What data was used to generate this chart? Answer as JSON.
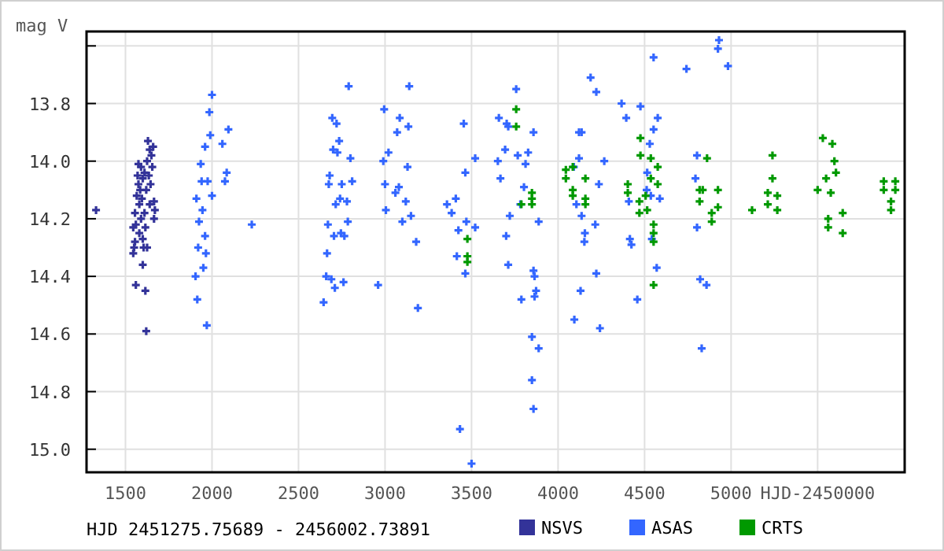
{
  "chart_data": {
    "type": "scatter",
    "ylabel": "mag V",
    "xlabel": "HJD-2450000",
    "annotations": [
      "HJD 2451275.75689 - 2456002.73891"
    ],
    "xlim": [
      1275,
      6003
    ],
    "xticks": [
      1500,
      2000,
      2500,
      3000,
      3500,
      4000,
      4500,
      5000,
      {
        "value": 5500,
        "label": null
      }
    ],
    "ylim": [
      15.08,
      13.55
    ],
    "yticks": [
      {
        "value": 13.6,
        "label": null
      },
      13.8,
      {
        "value": 14,
        "label": "14.0"
      },
      14.2,
      14.4,
      14.6,
      14.8,
      {
        "value": 15,
        "label": "15.0"
      }
    ],
    "grid": true,
    "legend": "bottom",
    "marker": "cross",
    "series": [
      {
        "name": "NSVS",
        "color": "#333399",
        "x": [
          1330,
          1545,
          1545,
          1550,
          1555,
          1555,
          1560,
          1560,
          1565,
          1570,
          1575,
          1575,
          1580,
          1580,
          1585,
          1590,
          1590,
          1595,
          1600,
          1600,
          1605,
          1610,
          1610,
          1615,
          1615,
          1620,
          1625,
          1625,
          1630,
          1635,
          1640,
          1640,
          1645,
          1650,
          1655,
          1660,
          1665,
          1665,
          1670,
          1620,
          1600
        ],
        "values": [
          14.17,
          14.23,
          14.32,
          14.3,
          14.28,
          14.18,
          14.43,
          14.22,
          14.12,
          14.05,
          14.01,
          14.08,
          14.15,
          14.25,
          14.1,
          14.02,
          14.2,
          14.13,
          14.06,
          14.27,
          14.3,
          14.18,
          14.04,
          14.45,
          14.23,
          14.1,
          14.0,
          14.3,
          13.93,
          14.05,
          13.96,
          14.15,
          14.08,
          13.98,
          14.02,
          13.95,
          14.14,
          14.2,
          14.17,
          14.59,
          14.36
        ]
      },
      {
        "name": "ASAS",
        "color": "#3366ff",
        "x": [
          1905,
          1910,
          1915,
          1920,
          1925,
          1935,
          1940,
          1945,
          1950,
          1960,
          1960,
          1965,
          1970,
          1975,
          1985,
          1990,
          2000,
          2000,
          2060,
          2075,
          2085,
          2095,
          2230,
          2645,
          2660,
          2665,
          2670,
          2675,
          2680,
          2690,
          2695,
          2700,
          2705,
          2710,
          2715,
          2720,
          2725,
          2735,
          2740,
          2745,
          2750,
          2760,
          2765,
          2780,
          2785,
          2790,
          2800,
          2810,
          2960,
          2990,
          2995,
          3000,
          3005,
          3020,
          3060,
          3070,
          3080,
          3085,
          3100,
          3120,
          3130,
          3135,
          3140,
          3150,
          3180,
          3190,
          3358,
          3385,
          3433,
          3455,
          3464,
          3409,
          3424,
          3470,
          3415,
          3464,
          3500,
          3521,
          3521,
          3658,
          3703,
          3652,
          3667,
          3712,
          3694,
          3721,
          3700,
          3712,
          3758,
          3767,
          3782,
          3812,
          3827,
          3803,
          3858,
          3888,
          3858,
          3864,
          3873,
          3864,
          3849,
          3888,
          3849,
          3858,
          3788,
          4091,
          4121,
          4136,
          4121,
          4106,
          4136,
          4155,
          4152,
          4130,
          4094,
          4188,
          4221,
          4236,
          4221,
          4242,
          4267,
          4215,
          4367,
          4394,
          4409,
          4415,
          4424,
          4458,
          4476,
          4530,
          4552,
          4576,
          4515,
          4536,
          4588,
          4552,
          4570,
          4542,
          4512,
          4742,
          4924,
          4930,
          4982,
          4803,
          4794,
          4803,
          4821,
          4858,
          4830
        ],
        "values": [
          14.4,
          14.13,
          14.48,
          14.3,
          14.21,
          14.01,
          14.07,
          14.17,
          14.37,
          14.26,
          13.95,
          14.32,
          14.57,
          14.07,
          13.83,
          13.91,
          13.77,
          14.12,
          13.94,
          14.07,
          14.04,
          13.89,
          14.22,
          14.49,
          14.4,
          14.32,
          14.22,
          14.08,
          14.05,
          14.41,
          13.85,
          13.96,
          14.26,
          14.44,
          14.15,
          13.87,
          13.97,
          13.93,
          14.13,
          14.25,
          14.08,
          14.42,
          14.26,
          14.14,
          14.21,
          13.74,
          13.99,
          14.07,
          14.43,
          14.0,
          13.82,
          14.08,
          14.17,
          13.97,
          14.11,
          13.9,
          14.09,
          13.85,
          14.21,
          14.14,
          14.02,
          13.88,
          13.74,
          14.19,
          14.28,
          14.51,
          14.15,
          14.18,
          14.93,
          13.87,
          14.04,
          14.13,
          14.24,
          14.21,
          14.33,
          14.39,
          15.05,
          14.23,
          13.99,
          13.85,
          13.87,
          14.0,
          14.06,
          13.88,
          13.96,
          14.19,
          14.26,
          14.36,
          13.75,
          13.98,
          14.15,
          14.01,
          13.97,
          14.09,
          13.9,
          14.21,
          14.38,
          14.4,
          14.45,
          14.47,
          14.61,
          14.65,
          14.76,
          14.86,
          14.48,
          14.02,
          13.9,
          13.9,
          13.99,
          14.15,
          14.19,
          14.25,
          14.28,
          14.45,
          14.55,
          13.71,
          13.76,
          14.08,
          14.39,
          14.58,
          14.0,
          14.22,
          13.8,
          13.85,
          14.14,
          14.27,
          14.29,
          14.48,
          13.81,
          13.94,
          13.89,
          13.85,
          14.04,
          14.12,
          14.13,
          13.64,
          14.37,
          14.27,
          14.1,
          13.68,
          13.61,
          13.58,
          13.67,
          13.98,
          14.06,
          14.23,
          14.41,
          14.43,
          14.65
        ]
      },
      {
        "name": "CRTS",
        "color": "#009900",
        "x": [
          3476,
          3476,
          3476,
          3758,
          3758,
          3788,
          3849,
          3849,
          3849,
          4045,
          4045,
          4085,
          4085,
          4085,
          4158,
          4158,
          4158,
          4403,
          4403,
          4476,
          4476,
          4470,
          4470,
          4506,
          4515,
          4536,
          4536,
          4576,
          4576,
          4552,
          4552,
          4552,
          4552,
          4818,
          4818,
          4836,
          4861,
          4888,
          4888,
          4924,
          4924,
          5121,
          5212,
          5212,
          5239,
          5239,
          5267,
          5267,
          5500,
          5530,
          5549,
          5561,
          5576,
          5585,
          5597,
          5606,
          5645,
          5645,
          5561,
          5882,
          5882,
          5924,
          5924,
          5949,
          5949
        ],
        "values": [
          14.27,
          14.33,
          14.35,
          13.82,
          13.88,
          14.15,
          14.11,
          14.13,
          14.15,
          14.03,
          14.06,
          14.02,
          14.1,
          14.12,
          14.06,
          14.13,
          14.15,
          14.08,
          14.11,
          13.92,
          13.98,
          14.14,
          14.18,
          14.12,
          14.17,
          13.99,
          14.06,
          14.02,
          14.08,
          14.22,
          14.25,
          14.28,
          14.43,
          14.1,
          14.14,
          14.1,
          13.99,
          14.18,
          14.21,
          14.1,
          14.16,
          14.17,
          14.11,
          14.15,
          13.98,
          14.06,
          14.12,
          14.17,
          14.1,
          13.92,
          14.06,
          14.2,
          14.11,
          13.94,
          14.0,
          14.04,
          14.18,
          14.25,
          14.23,
          14.07,
          14.1,
          14.14,
          14.17,
          14.07,
          14.1
        ]
      }
    ]
  }
}
